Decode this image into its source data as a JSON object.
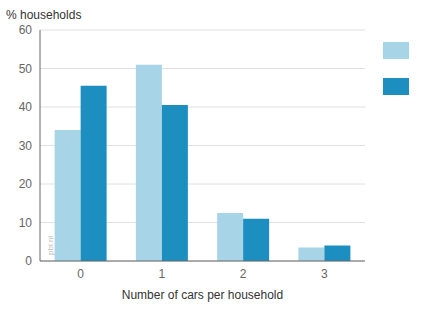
{
  "chart_data": {
    "type": "bar",
    "categories": [
      "0",
      "1",
      "2",
      "3"
    ],
    "series": [
      {
        "color": "#a8d4e8",
        "values": [
          34,
          51,
          12.5,
          3.5
        ]
      },
      {
        "color": "#1c8fc0",
        "values": [
          45.5,
          40.5,
          11,
          4
        ]
      }
    ],
    "xlabel": "Number of cars per household",
    "ylabel": "% households",
    "annotations": [
      "pbi.nl"
    ],
    "ylim": [
      0,
      60
    ],
    "yticks": [
      0,
      10,
      20,
      30,
      40,
      50,
      60
    ],
    "grid": true,
    "legend": "right"
  }
}
